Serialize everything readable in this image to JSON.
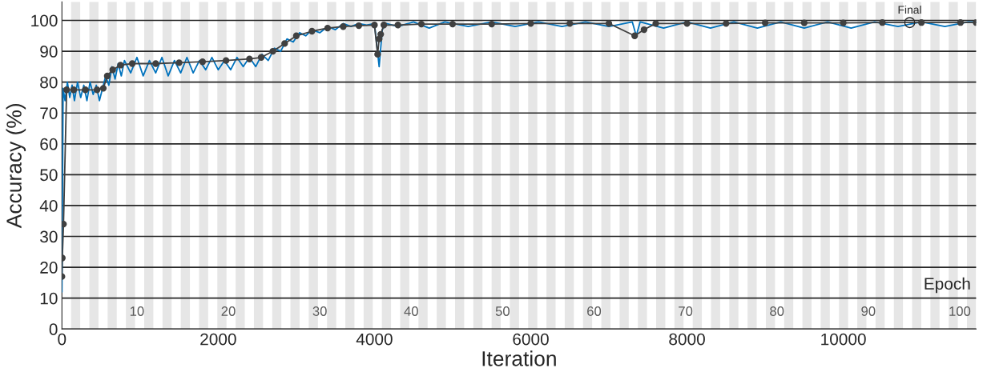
{
  "chart_data": {
    "type": "line",
    "xlabel": "Iteration",
    "ylabel": "Accuracy (%)",
    "xlim": [
      0,
      11700
    ],
    "xticks": [
      0,
      2000,
      4000,
      6000,
      8000,
      10000
    ],
    "ylim": [
      0,
      106
    ],
    "yticks": [
      0,
      10,
      20,
      30,
      40,
      50,
      60,
      70,
      80,
      90,
      100
    ],
    "grid": "y",
    "legend": false,
    "series": [
      {
        "color": "#0072bd",
        "marker": "none",
        "x": [
          0,
          15,
          40,
          70,
          100,
          130,
          160,
          200,
          240,
          280,
          320,
          360,
          400,
          440,
          480,
          520,
          560,
          600,
          640,
          680,
          720,
          760,
          800,
          880,
          960,
          1040,
          1120,
          1200,
          1280,
          1360,
          1440,
          1520,
          1600,
          1680,
          1760,
          1840,
          1920,
          2000,
          2080,
          2160,
          2240,
          2320,
          2400,
          2480,
          2560,
          2640,
          2720,
          2800,
          2880,
          2960,
          3040,
          3120,
          3200,
          3300,
          3400,
          3500,
          3600,
          3700,
          3800,
          3900,
          4000,
          4060,
          4100,
          4150,
          4300,
          4500,
          4700,
          4900,
          5200,
          5500,
          5800,
          6100,
          6400,
          6700,
          7000,
          7300,
          7350,
          7400,
          7700,
          8000,
          8300,
          8600,
          8900,
          9200,
          9500,
          9800,
          10100,
          10400,
          10700,
          11000,
          11300,
          11600,
          11700
        ],
        "values": [
          12,
          78,
          74,
          80,
          75,
          79,
          74,
          80,
          75,
          79,
          74,
          80,
          76,
          79,
          74,
          78,
          82,
          79,
          85,
          81,
          86,
          82,
          87,
          83,
          88,
          82,
          87,
          83,
          88,
          82,
          87,
          83,
          88,
          83,
          87,
          84,
          88,
          84,
          87,
          84,
          88,
          85,
          88,
          85,
          89,
          87,
          91,
          90,
          94,
          93,
          96,
          95,
          97,
          96,
          98,
          97,
          99,
          98,
          99,
          98.5,
          99,
          85,
          97,
          99,
          98,
          99.5,
          97.5,
          99.5,
          98,
          99.5,
          98,
          99.5,
          98,
          99.5,
          98,
          99.5,
          95,
          99.5,
          97.5,
          99.5,
          97.5,
          99.5,
          97.5,
          99.5,
          97.5,
          99.5,
          97.5,
          99.5,
          98,
          99.5,
          98,
          99.5,
          99.5
        ]
      },
      {
        "color": "#404040",
        "marker": "circle",
        "x": [
          0,
          5,
          20,
          60,
          150,
          300,
          450,
          530,
          580,
          650,
          750,
          900,
          1200,
          1500,
          1800,
          2100,
          2400,
          2550,
          2700,
          2850,
          3000,
          3200,
          3400,
          3600,
          3800,
          4000,
          4040,
          4060,
          4080,
          4120,
          4300,
          4600,
          5000,
          5500,
          6000,
          6500,
          7000,
          7330,
          7450,
          7600,
          8000,
          8500,
          9000,
          9500,
          10000,
          10500,
          11000,
          11500,
          11700
        ],
        "values": [
          17,
          23,
          34,
          77.5,
          77.5,
          77.5,
          77.5,
          78,
          82,
          84,
          85.5,
          86,
          86,
          86.3,
          86.6,
          87,
          87.5,
          88,
          90,
          92.5,
          95,
          96.5,
          97.5,
          98,
          98.3,
          98.5,
          89,
          94,
          95.5,
          98.5,
          98.5,
          98.8,
          98.8,
          98.8,
          99,
          99,
          99,
          95,
          97,
          99,
          99,
          99,
          99.2,
          99.2,
          99.2,
          99.3,
          99.3,
          99.3,
          99.3
        ]
      }
    ],
    "bands": [
      {
        "axis": "x",
        "from": 117,
        "to": 234,
        "color": "#e6e6e6"
      },
      {
        "axis": "x",
        "from": 351,
        "to": 468,
        "color": "#e6e6e6"
      },
      {
        "axis": "x",
        "from": 585,
        "to": 702,
        "color": "#e6e6e6"
      },
      {
        "axis": "x",
        "from": 819,
        "to": 936,
        "color": "#e6e6e6"
      },
      {
        "axis": "x",
        "from": 1053,
        "to": 1170,
        "color": "#e6e6e6"
      },
      {
        "axis": "x",
        "from": 1287,
        "to": 1404,
        "color": "#e6e6e6"
      },
      {
        "axis": "x",
        "from": 1521,
        "to": 1638,
        "color": "#e6e6e6"
      },
      {
        "axis": "x",
        "from": 1755,
        "to": 1872,
        "color": "#e6e6e6"
      },
      {
        "axis": "x",
        "from": 1989,
        "to": 2106,
        "color": "#e6e6e6"
      },
      {
        "axis": "x",
        "from": 2223,
        "to": 2340,
        "color": "#e6e6e6"
      },
      {
        "axis": "x",
        "from": 2457,
        "to": 2574,
        "color": "#e6e6e6"
      },
      {
        "axis": "x",
        "from": 2691,
        "to": 2808,
        "color": "#e6e6e6"
      },
      {
        "axis": "x",
        "from": 2925,
        "to": 3042,
        "color": "#e6e6e6"
      },
      {
        "axis": "x",
        "from": 3159,
        "to": 3276,
        "color": "#e6e6e6"
      },
      {
        "axis": "x",
        "from": 3393,
        "to": 3510,
        "color": "#e6e6e6"
      },
      {
        "axis": "x",
        "from": 3627,
        "to": 3744,
        "color": "#e6e6e6"
      },
      {
        "axis": "x",
        "from": 3861,
        "to": 3978,
        "color": "#e6e6e6"
      },
      {
        "axis": "x",
        "from": 4095,
        "to": 4212,
        "color": "#e6e6e6"
      },
      {
        "axis": "x",
        "from": 4329,
        "to": 4446,
        "color": "#e6e6e6"
      },
      {
        "axis": "x",
        "from": 4563,
        "to": 4680,
        "color": "#e6e6e6"
      },
      {
        "axis": "x",
        "from": 4797,
        "to": 4914,
        "color": "#e6e6e6"
      },
      {
        "axis": "x",
        "from": 5031,
        "to": 5148,
        "color": "#e6e6e6"
      },
      {
        "axis": "x",
        "from": 5265,
        "to": 5382,
        "color": "#e6e6e6"
      },
      {
        "axis": "x",
        "from": 5499,
        "to": 5616,
        "color": "#e6e6e6"
      },
      {
        "axis": "x",
        "from": 5733,
        "to": 5850,
        "color": "#e6e6e6"
      },
      {
        "axis": "x",
        "from": 5967,
        "to": 6084,
        "color": "#e6e6e6"
      },
      {
        "axis": "x",
        "from": 6201,
        "to": 6318,
        "color": "#e6e6e6"
      },
      {
        "axis": "x",
        "from": 6435,
        "to": 6552,
        "color": "#e6e6e6"
      },
      {
        "axis": "x",
        "from": 6669,
        "to": 6786,
        "color": "#e6e6e6"
      },
      {
        "axis": "x",
        "from": 6903,
        "to": 7020,
        "color": "#e6e6e6"
      },
      {
        "axis": "x",
        "from": 7137,
        "to": 7254,
        "color": "#e6e6e6"
      },
      {
        "axis": "x",
        "from": 7371,
        "to": 7488,
        "color": "#e6e6e6"
      },
      {
        "axis": "x",
        "from": 7605,
        "to": 7722,
        "color": "#e6e6e6"
      },
      {
        "axis": "x",
        "from": 7839,
        "to": 7956,
        "color": "#e6e6e6"
      },
      {
        "axis": "x",
        "from": 8073,
        "to": 8190,
        "color": "#e6e6e6"
      },
      {
        "axis": "x",
        "from": 8307,
        "to": 8424,
        "color": "#e6e6e6"
      },
      {
        "axis": "x",
        "from": 8541,
        "to": 8658,
        "color": "#e6e6e6"
      },
      {
        "axis": "x",
        "from": 8775,
        "to": 8892,
        "color": "#e6e6e6"
      },
      {
        "axis": "x",
        "from": 9009,
        "to": 9126,
        "color": "#e6e6e6"
      },
      {
        "axis": "x",
        "from": 9243,
        "to": 9360,
        "color": "#e6e6e6"
      },
      {
        "axis": "x",
        "from": 9477,
        "to": 9594,
        "color": "#e6e6e6"
      },
      {
        "axis": "x",
        "from": 9711,
        "to": 9828,
        "color": "#e6e6e6"
      },
      {
        "axis": "x",
        "from": 9945,
        "to": 10062,
        "color": "#e6e6e6"
      },
      {
        "axis": "x",
        "from": 10179,
        "to": 10296,
        "color": "#e6e6e6"
      },
      {
        "axis": "x",
        "from": 10413,
        "to": 10530,
        "color": "#e6e6e6"
      },
      {
        "axis": "x",
        "from": 10647,
        "to": 10764,
        "color": "#e6e6e6"
      },
      {
        "axis": "x",
        "from": 10881,
        "to": 10998,
        "color": "#e6e6e6"
      },
      {
        "axis": "x",
        "from": 11115,
        "to": 11232,
        "color": "#e6e6e6"
      },
      {
        "axis": "x",
        "from": 11349,
        "to": 11466,
        "color": "#e6e6e6"
      },
      {
        "axis": "x",
        "from": 11583,
        "to": 11700,
        "color": "#e6e6e6"
      }
    ],
    "annotations": [
      {
        "text": "10",
        "x": 960,
        "y": 5.4
      },
      {
        "text": "20",
        "x": 2130,
        "y": 5.4
      },
      {
        "text": "30",
        "x": 3300,
        "y": 5.4
      },
      {
        "text": "40",
        "x": 4470,
        "y": 5.4
      },
      {
        "text": "50",
        "x": 5640,
        "y": 5.4
      },
      {
        "text": "60",
        "x": 6810,
        "y": 5.4
      },
      {
        "text": "70",
        "x": 7980,
        "y": 5.4
      },
      {
        "text": "80",
        "x": 9150,
        "y": 5.4
      },
      {
        "text": "90",
        "x": 10320,
        "y": 5.4
      },
      {
        "text": "100",
        "x": 11490,
        "y": 5.4
      },
      {
        "text": "Epoch",
        "x": 11330,
        "y": 14.2
      },
      {
        "text": "Final",
        "x": 10850,
        "y": 99.3
      }
    ]
  }
}
